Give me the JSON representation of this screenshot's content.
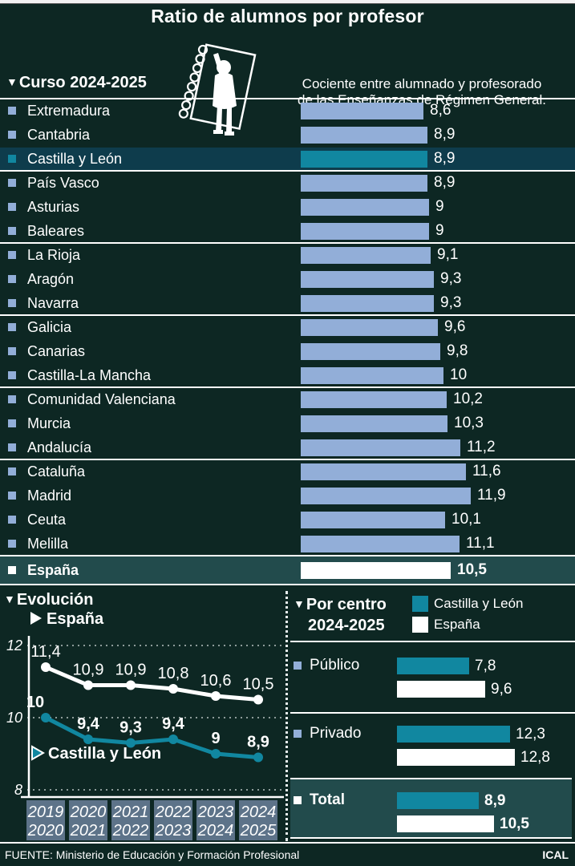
{
  "title": "Ratio de alumnos por profesor",
  "header": {
    "course_label": "Curso 2024-2025",
    "description_line1": "Cociente entre alumnado y profesorado",
    "description_line2": "de las Enseñanzas de Régimen General.",
    "illustration": "child-with-spiral-notebook"
  },
  "colors": {
    "background": "#0d2723",
    "bar_light": "#92aed8",
    "teal": "#1187a0",
    "highlight_row": "#0e3c4c",
    "espana_row": "#224b4c",
    "year_box": "#5d7389",
    "white": "#ffffff"
  },
  "chart_data": [
    {
      "id": "regions",
      "type": "bar",
      "orientation": "horizontal",
      "title": "Curso 2024-2025",
      "xlim": [
        0,
        12.8
      ],
      "rows": [
        {
          "label": "Extremadura",
          "value": 8.6,
          "display": "8,6"
        },
        {
          "label": "Cantabria",
          "value": 8.9,
          "display": "8,9"
        },
        {
          "label": "Castilla y León",
          "value": 8.9,
          "display": "8,9",
          "highlight": "castilla-y-leon",
          "group_end": true
        },
        {
          "label": "País Vasco",
          "value": 8.9,
          "display": "8,9"
        },
        {
          "label": "Asturias",
          "value": 9,
          "display": "9"
        },
        {
          "label": "Baleares",
          "value": 9,
          "display": "9",
          "group_end": true
        },
        {
          "label": "La Rioja",
          "value": 9.1,
          "display": "9,1"
        },
        {
          "label": "Aragón",
          "value": 9.3,
          "display": "9,3"
        },
        {
          "label": "Navarra",
          "value": 9.3,
          "display": "9,3",
          "group_end": true
        },
        {
          "label": "Galicia",
          "value": 9.6,
          "display": "9,6"
        },
        {
          "label": "Canarias",
          "value": 9.8,
          "display": "9,8"
        },
        {
          "label": "Castilla-La Mancha",
          "value": 10,
          "display": "10",
          "group_end": true
        },
        {
          "label": "Comunidad Valenciana",
          "value": 10.2,
          "display": "10,2"
        },
        {
          "label": "Murcia",
          "value": 10.3,
          "display": "10,3"
        },
        {
          "label": "Andalucía",
          "value": 11.2,
          "display": "11,2",
          "group_end": true
        },
        {
          "label": "Cataluña",
          "value": 11.6,
          "display": "11,6"
        },
        {
          "label": "Madrid",
          "value": 11.9,
          "display": "11,9"
        },
        {
          "label": "Ceuta",
          "value": 10.1,
          "display": "10,1"
        },
        {
          "label": "Melilla",
          "value": 11.1,
          "display": "11,1",
          "group_end": true
        },
        {
          "label": "España",
          "value": 10.5,
          "display": "10,5",
          "highlight": "espana",
          "group_end": true
        }
      ]
    },
    {
      "id": "evolution",
      "type": "line",
      "title": "Evolución",
      "x_labels": [
        [
          "2019",
          "2020"
        ],
        [
          "2020",
          "2021"
        ],
        [
          "2021",
          "2022"
        ],
        [
          "2022",
          "2023"
        ],
        [
          "2023",
          "2024"
        ],
        [
          "2024",
          "2025"
        ]
      ],
      "yticks": [
        "12",
        "10",
        "8"
      ],
      "ylim": [
        8,
        12
      ],
      "grid": "dashed-horizontal",
      "series": [
        {
          "name": "España",
          "color_key": "white",
          "values": [
            11.4,
            10.9,
            10.9,
            10.8,
            10.6,
            10.5
          ],
          "labels": [
            "11,4",
            "10,9",
            "10,9",
            "10,8",
            "10,6",
            "10,5"
          ]
        },
        {
          "name": "Castilla y León",
          "color_key": "teal",
          "values": [
            10,
            9.4,
            9.3,
            9.4,
            9,
            8.9
          ],
          "labels": [
            "10",
            "9,4",
            "9,3",
            "9,4",
            "9",
            "8,9"
          ]
        }
      ]
    },
    {
      "id": "por_centro",
      "type": "bar",
      "orientation": "horizontal",
      "title_lines": [
        "Por centro",
        "2024-2025"
      ],
      "legend": [
        "Castilla y León",
        "España"
      ],
      "legend_position": "top-right",
      "categories": [
        {
          "label": "Público"
        },
        {
          "label": "Privado"
        },
        {
          "label": "Total",
          "highlight": true
        }
      ],
      "series": [
        {
          "name": "Castilla y León",
          "color_key": "teal",
          "values": [
            7.8,
            12.3,
            8.9
          ],
          "displays": [
            "7,8",
            "12,3",
            "8,9"
          ]
        },
        {
          "name": "España",
          "color_key": "white",
          "values": [
            9.6,
            12.8,
            10.5
          ],
          "displays": [
            "9,6",
            "12,8",
            "10,5"
          ]
        }
      ]
    }
  ],
  "footer": {
    "source": "FUENTE: Ministerio de Educación y Formación Profesional",
    "credit": "ICAL"
  }
}
